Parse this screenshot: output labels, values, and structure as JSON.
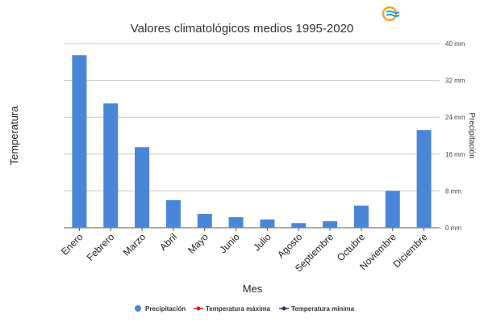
{
  "chart_data": {
    "type": "bar",
    "title": "Valores climatológicos medios 1995-2020",
    "xlabel": "Mes",
    "ylabel_left": "Temperatura",
    "ylabel_right": "Precipitación",
    "categories": [
      "Enero",
      "Febrero",
      "Marzo",
      "Abril",
      "Mayo",
      "Junio",
      "Julio",
      "Agosto",
      "Septiembre",
      "Octubre",
      "Noviembre",
      "Diciembre"
    ],
    "series": [
      {
        "name": "Precipitación",
        "axis": "right",
        "unit": "mm",
        "color": "#4a86d8",
        "values": [
          37.5,
          27.0,
          17.5,
          6.0,
          3.0,
          2.3,
          1.8,
          1.0,
          1.4,
          4.8,
          8.0,
          21.2
        ]
      }
    ],
    "right_axis": {
      "ylim": [
        0,
        40
      ],
      "ticks": [
        "0 mm",
        "8 mm",
        "16 mm",
        "24 mm",
        "32 mm",
        "40 mm"
      ]
    },
    "legend": {
      "placement": "bottom",
      "entries": [
        {
          "label": "Precipitación",
          "color": "#4a86d8",
          "marker": "circle"
        },
        {
          "label": "Temperatura máxima",
          "color": "#e02020",
          "marker": "line-dot"
        },
        {
          "label": "Temperatura mínima",
          "color": "#2b3a6b",
          "marker": "line-dot"
        }
      ]
    },
    "grid": true
  },
  "logo": {
    "icon": "climate-logo-icon",
    "colors": [
      "#f5a623",
      "#2a9fd8"
    ]
  }
}
